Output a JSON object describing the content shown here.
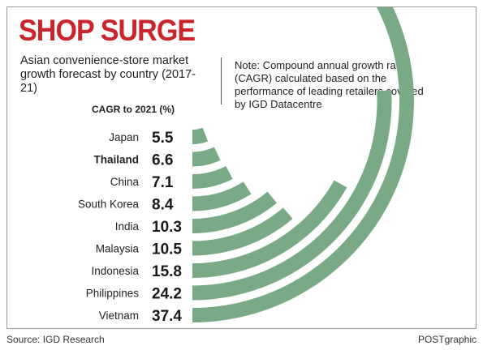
{
  "title": "SHOP SURGE",
  "subtitle": "Asian convenience-store market growth forecast by country (2017-21)",
  "note": "Note: Compound annual growth rate (CAGR) calculated based on the performance of leading retailers covered by IGD Datacentre",
  "source": "Source: IGD Research",
  "credit": "POSTgraphic",
  "colors": {
    "title": "#c9252b",
    "arc": "#7aaa85",
    "text": "#222222"
  },
  "chart_data": {
    "type": "bar",
    "style": "radial-arc",
    "title": "SHOP SURGE",
    "ylabel": "CAGR to 2021 (%)",
    "categories": [
      "Japan",
      "Thailand",
      "China",
      "South Korea",
      "India",
      "Malaysia",
      "Indonesia",
      "Philippines",
      "Vietnam"
    ],
    "values": [
      5.5,
      6.6,
      7.1,
      8.4,
      10.3,
      10.5,
      15.8,
      24.2,
      37.4
    ],
    "value_labels": [
      "5.5",
      "6.6",
      "7.1",
      "8.4",
      "10.3",
      "10.5",
      "15.8",
      "24.2",
      "37.4"
    ],
    "highlight_category": "Thailand"
  }
}
